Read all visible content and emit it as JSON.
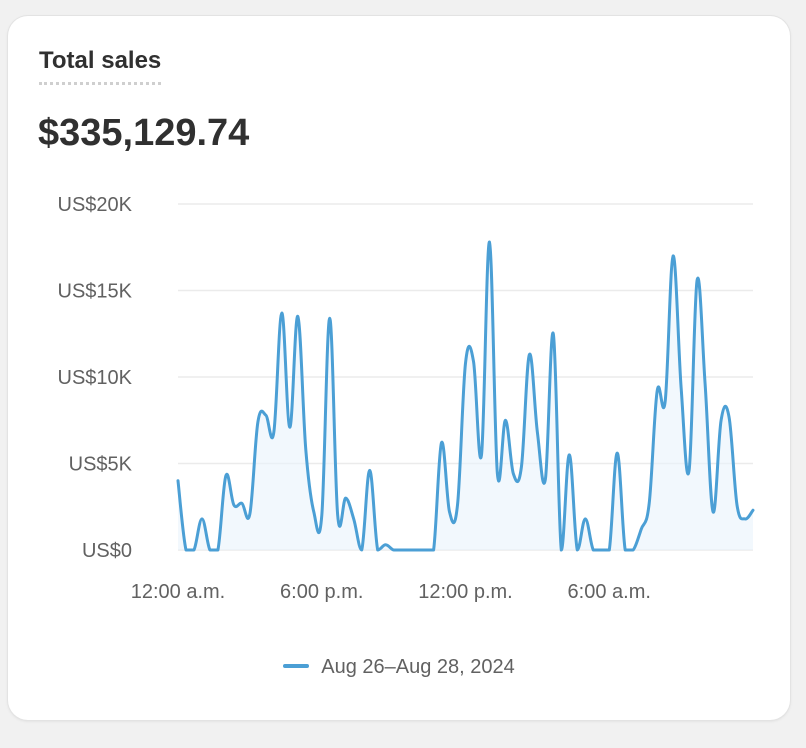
{
  "card": {
    "title": "Total sales",
    "total": "$335,129.74"
  },
  "chart_data": {
    "type": "line",
    "title": "",
    "xlabel": "",
    "ylabel": "",
    "ylim": [
      0,
      20000
    ],
    "yticks": [
      {
        "value": 0,
        "label": "US$0"
      },
      {
        "value": 5000,
        "label": "US$5K"
      },
      {
        "value": 10000,
        "label": "US$10K"
      },
      {
        "value": 15000,
        "label": "US$15K"
      },
      {
        "value": 20000,
        "label": "US$20K"
      }
    ],
    "xticks": [
      {
        "index": 0,
        "label": "12:00 a.m."
      },
      {
        "index": 18,
        "label": "6:00 p.m."
      },
      {
        "index": 36,
        "label": "12:00 p.m."
      },
      {
        "index": 54,
        "label": "6:00 a.m."
      }
    ],
    "grid": true,
    "legend_position": "bottom",
    "colors": {
      "line": "#4b9fd5",
      "fill": "#e9f3fb"
    },
    "series": [
      {
        "name": "Aug 26–Aug 28, 2024",
        "values": [
          4000,
          0,
          0,
          1800,
          0,
          0,
          4300,
          2600,
          2700,
          2100,
          7400,
          7800,
          6800,
          13700,
          7100,
          13500,
          5800,
          2200,
          2000,
          13400,
          2000,
          3000,
          1800,
          0,
          4600,
          0,
          300,
          0,
          0,
          0,
          0,
          0,
          0,
          6200,
          2200,
          2600,
          10800,
          10900,
          5500,
          17800,
          4400,
          7500,
          4400,
          4800,
          11300,
          6800,
          4100,
          12500,
          0,
          5500,
          0,
          1800,
          0,
          0,
          0,
          5600,
          0,
          0,
          1200,
          2700,
          9200,
          8600,
          17000,
          9400,
          4600,
          15600,
          9600,
          2200,
          7500,
          7700,
          2600,
          1800,
          2300
        ]
      }
    ]
  }
}
